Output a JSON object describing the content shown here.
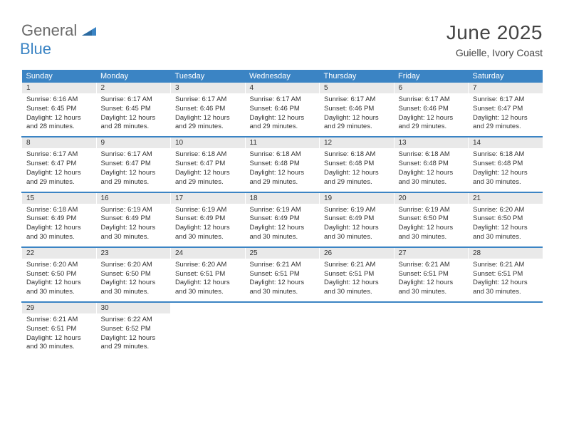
{
  "logo": {
    "word1": "General",
    "word2": "Blue"
  },
  "colors": {
    "header_bg": "#3b84c4",
    "header_text": "#ffffff",
    "daynum_bg": "#e9e9e9",
    "text": "#333333",
    "page_bg": "#ffffff",
    "logo_gray": "#6b6b6b",
    "logo_blue": "#3b84c4"
  },
  "title": "June 2025",
  "subtitle": "Guielle, Ivory Coast",
  "dayHeaders": [
    "Sunday",
    "Monday",
    "Tuesday",
    "Wednesday",
    "Thursday",
    "Friday",
    "Saturday"
  ],
  "weeks": [
    [
      {
        "num": "1",
        "sunrise": "Sunrise: 6:16 AM",
        "sunset": "Sunset: 6:45 PM",
        "daylight": "Daylight: 12 hours and 28 minutes."
      },
      {
        "num": "2",
        "sunrise": "Sunrise: 6:17 AM",
        "sunset": "Sunset: 6:45 PM",
        "daylight": "Daylight: 12 hours and 28 minutes."
      },
      {
        "num": "3",
        "sunrise": "Sunrise: 6:17 AM",
        "sunset": "Sunset: 6:46 PM",
        "daylight": "Daylight: 12 hours and 29 minutes."
      },
      {
        "num": "4",
        "sunrise": "Sunrise: 6:17 AM",
        "sunset": "Sunset: 6:46 PM",
        "daylight": "Daylight: 12 hours and 29 minutes."
      },
      {
        "num": "5",
        "sunrise": "Sunrise: 6:17 AM",
        "sunset": "Sunset: 6:46 PM",
        "daylight": "Daylight: 12 hours and 29 minutes."
      },
      {
        "num": "6",
        "sunrise": "Sunrise: 6:17 AM",
        "sunset": "Sunset: 6:46 PM",
        "daylight": "Daylight: 12 hours and 29 minutes."
      },
      {
        "num": "7",
        "sunrise": "Sunrise: 6:17 AM",
        "sunset": "Sunset: 6:47 PM",
        "daylight": "Daylight: 12 hours and 29 minutes."
      }
    ],
    [
      {
        "num": "8",
        "sunrise": "Sunrise: 6:17 AM",
        "sunset": "Sunset: 6:47 PM",
        "daylight": "Daylight: 12 hours and 29 minutes."
      },
      {
        "num": "9",
        "sunrise": "Sunrise: 6:17 AM",
        "sunset": "Sunset: 6:47 PM",
        "daylight": "Daylight: 12 hours and 29 minutes."
      },
      {
        "num": "10",
        "sunrise": "Sunrise: 6:18 AM",
        "sunset": "Sunset: 6:47 PM",
        "daylight": "Daylight: 12 hours and 29 minutes."
      },
      {
        "num": "11",
        "sunrise": "Sunrise: 6:18 AM",
        "sunset": "Sunset: 6:48 PM",
        "daylight": "Daylight: 12 hours and 29 minutes."
      },
      {
        "num": "12",
        "sunrise": "Sunrise: 6:18 AM",
        "sunset": "Sunset: 6:48 PM",
        "daylight": "Daylight: 12 hours and 29 minutes."
      },
      {
        "num": "13",
        "sunrise": "Sunrise: 6:18 AM",
        "sunset": "Sunset: 6:48 PM",
        "daylight": "Daylight: 12 hours and 30 minutes."
      },
      {
        "num": "14",
        "sunrise": "Sunrise: 6:18 AM",
        "sunset": "Sunset: 6:48 PM",
        "daylight": "Daylight: 12 hours and 30 minutes."
      }
    ],
    [
      {
        "num": "15",
        "sunrise": "Sunrise: 6:18 AM",
        "sunset": "Sunset: 6:49 PM",
        "daylight": "Daylight: 12 hours and 30 minutes."
      },
      {
        "num": "16",
        "sunrise": "Sunrise: 6:19 AM",
        "sunset": "Sunset: 6:49 PM",
        "daylight": "Daylight: 12 hours and 30 minutes."
      },
      {
        "num": "17",
        "sunrise": "Sunrise: 6:19 AM",
        "sunset": "Sunset: 6:49 PM",
        "daylight": "Daylight: 12 hours and 30 minutes."
      },
      {
        "num": "18",
        "sunrise": "Sunrise: 6:19 AM",
        "sunset": "Sunset: 6:49 PM",
        "daylight": "Daylight: 12 hours and 30 minutes."
      },
      {
        "num": "19",
        "sunrise": "Sunrise: 6:19 AM",
        "sunset": "Sunset: 6:49 PM",
        "daylight": "Daylight: 12 hours and 30 minutes."
      },
      {
        "num": "20",
        "sunrise": "Sunrise: 6:19 AM",
        "sunset": "Sunset: 6:50 PM",
        "daylight": "Daylight: 12 hours and 30 minutes."
      },
      {
        "num": "21",
        "sunrise": "Sunrise: 6:20 AM",
        "sunset": "Sunset: 6:50 PM",
        "daylight": "Daylight: 12 hours and 30 minutes."
      }
    ],
    [
      {
        "num": "22",
        "sunrise": "Sunrise: 6:20 AM",
        "sunset": "Sunset: 6:50 PM",
        "daylight": "Daylight: 12 hours and 30 minutes."
      },
      {
        "num": "23",
        "sunrise": "Sunrise: 6:20 AM",
        "sunset": "Sunset: 6:50 PM",
        "daylight": "Daylight: 12 hours and 30 minutes."
      },
      {
        "num": "24",
        "sunrise": "Sunrise: 6:20 AM",
        "sunset": "Sunset: 6:51 PM",
        "daylight": "Daylight: 12 hours and 30 minutes."
      },
      {
        "num": "25",
        "sunrise": "Sunrise: 6:21 AM",
        "sunset": "Sunset: 6:51 PM",
        "daylight": "Daylight: 12 hours and 30 minutes."
      },
      {
        "num": "26",
        "sunrise": "Sunrise: 6:21 AM",
        "sunset": "Sunset: 6:51 PM",
        "daylight": "Daylight: 12 hours and 30 minutes."
      },
      {
        "num": "27",
        "sunrise": "Sunrise: 6:21 AM",
        "sunset": "Sunset: 6:51 PM",
        "daylight": "Daylight: 12 hours and 30 minutes."
      },
      {
        "num": "28",
        "sunrise": "Sunrise: 6:21 AM",
        "sunset": "Sunset: 6:51 PM",
        "daylight": "Daylight: 12 hours and 30 minutes."
      }
    ],
    [
      {
        "num": "29",
        "sunrise": "Sunrise: 6:21 AM",
        "sunset": "Sunset: 6:51 PM",
        "daylight": "Daylight: 12 hours and 30 minutes."
      },
      {
        "num": "30",
        "sunrise": "Sunrise: 6:22 AM",
        "sunset": "Sunset: 6:52 PM",
        "daylight": "Daylight: 12 hours and 29 minutes."
      },
      null,
      null,
      null,
      null,
      null
    ]
  ]
}
